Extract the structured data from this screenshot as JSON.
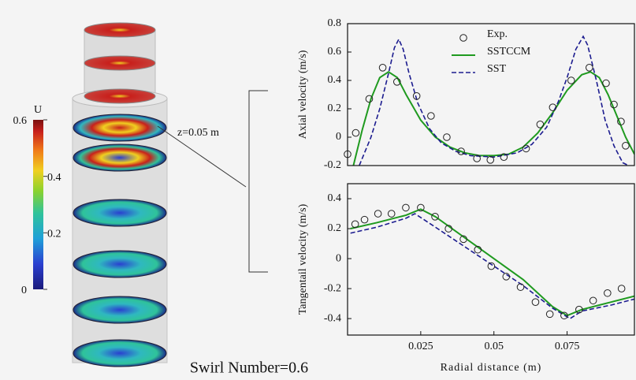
{
  "colorbar": {
    "title": "U",
    "lim": [
      0,
      0.6
    ],
    "ticks": [
      0,
      0.2,
      0.4,
      0.6
    ]
  },
  "annotations": {
    "plane": "z=0.05 m",
    "caption": "Swirl Number=0.6"
  },
  "chart_data": [
    {
      "type": "line",
      "ylabel": "Axial velocity (m/s)",
      "xlim": [
        0,
        0.098
      ],
      "ylim": [
        -0.2,
        0.8
      ],
      "yticks": [
        -0.2,
        0,
        0.2,
        0.4,
        0.6,
        0.8
      ],
      "legend": "upper center",
      "series": [
        {
          "name": "Exp.",
          "style": "markers",
          "color": "#222222",
          "x": [
            0.0,
            0.0028,
            0.0074,
            0.012,
            0.0169,
            0.0236,
            0.0285,
            0.0339,
            0.0388,
            0.0442,
            0.0488,
            0.0534,
            0.061,
            0.0658,
            0.0701,
            0.0764,
            0.0826,
            0.0883,
            0.091,
            0.0934,
            0.095
          ],
          "values": [
            -0.12,
            0.03,
            0.27,
            0.49,
            0.39,
            0.29,
            0.15,
            0.0,
            -0.1,
            -0.15,
            -0.16,
            -0.14,
            -0.08,
            0.09,
            0.21,
            0.4,
            0.49,
            0.38,
            0.23,
            0.11,
            -0.06
          ]
        },
        {
          "name": "SSTCCM",
          "style": "solid",
          "color": "#1f9a1f",
          "x": [
            0.002,
            0.005,
            0.008,
            0.011,
            0.014,
            0.017,
            0.02,
            0.025,
            0.03,
            0.035,
            0.04,
            0.045,
            0.05,
            0.055,
            0.06,
            0.065,
            0.07,
            0.075,
            0.08,
            0.083,
            0.086,
            0.089,
            0.092,
            0.095,
            0.098
          ],
          "values": [
            -0.2,
            0.05,
            0.27,
            0.42,
            0.46,
            0.42,
            0.3,
            0.12,
            0.0,
            -0.07,
            -0.11,
            -0.13,
            -0.13,
            -0.12,
            -0.07,
            0.03,
            0.17,
            0.33,
            0.44,
            0.46,
            0.42,
            0.3,
            0.15,
            0.0,
            -0.12
          ]
        },
        {
          "name": "SST",
          "style": "dashed",
          "color": "#1c1c8f",
          "x": [
            0.004,
            0.008,
            0.011,
            0.014,
            0.016,
            0.0175,
            0.019,
            0.021,
            0.024,
            0.028,
            0.032,
            0.037,
            0.042,
            0.05,
            0.058,
            0.063,
            0.068,
            0.072,
            0.075,
            0.078,
            0.0805,
            0.082,
            0.085,
            0.088,
            0.091,
            0.094,
            0.096
          ],
          "values": [
            -0.2,
            0.0,
            0.2,
            0.45,
            0.63,
            0.69,
            0.62,
            0.45,
            0.24,
            0.06,
            -0.04,
            -0.1,
            -0.13,
            -0.14,
            -0.11,
            -0.05,
            0.07,
            0.25,
            0.42,
            0.62,
            0.71,
            0.65,
            0.4,
            0.12,
            -0.06,
            -0.18,
            -0.2
          ]
        }
      ]
    },
    {
      "type": "line",
      "ylabel": "Tangentail velocity (m/s)",
      "xlabel": "Radial distance (m)",
      "xlim": [
        0,
        0.098
      ],
      "xticks": [
        0.025,
        0.05,
        0.075
      ],
      "ylim": [
        -0.51,
        0.5
      ],
      "yticks": [
        -0.4,
        -0.2,
        0,
        0.2,
        0.4
      ],
      "series": [
        {
          "name": "Exp.",
          "style": "markers",
          "color": "#222222",
          "x": [
            0.0026,
            0.0058,
            0.0104,
            0.015,
            0.0199,
            0.025,
            0.0299,
            0.0345,
            0.0396,
            0.0445,
            0.0491,
            0.0542,
            0.0591,
            0.0642,
            0.0691,
            0.074,
            0.0791,
            0.0839,
            0.0888,
            0.0936
          ],
          "values": [
            0.23,
            0.26,
            0.3,
            0.3,
            0.34,
            0.34,
            0.28,
            0.2,
            0.13,
            0.06,
            -0.05,
            -0.12,
            -0.19,
            -0.29,
            -0.37,
            -0.38,
            -0.34,
            -0.28,
            -0.23,
            -0.2
          ]
        },
        {
          "name": "SSTCCM",
          "style": "solid",
          "color": "#1f9a1f",
          "x": [
            0.001,
            0.01,
            0.02,
            0.025,
            0.03,
            0.04,
            0.05,
            0.06,
            0.07,
            0.075,
            0.08,
            0.09,
            0.098
          ],
          "values": [
            0.2,
            0.24,
            0.29,
            0.33,
            0.28,
            0.14,
            0.0,
            -0.14,
            -0.32,
            -0.38,
            -0.34,
            -0.29,
            -0.25
          ]
        },
        {
          "name": "SST",
          "style": "dashed",
          "color": "#1c1c8f",
          "x": [
            0.001,
            0.01,
            0.02,
            0.023,
            0.03,
            0.04,
            0.05,
            0.06,
            0.07,
            0.076,
            0.08,
            0.09,
            0.098
          ],
          "values": [
            0.17,
            0.21,
            0.27,
            0.3,
            0.21,
            0.08,
            -0.05,
            -0.18,
            -0.33,
            -0.4,
            -0.35,
            -0.31,
            -0.27
          ]
        }
      ]
    }
  ]
}
